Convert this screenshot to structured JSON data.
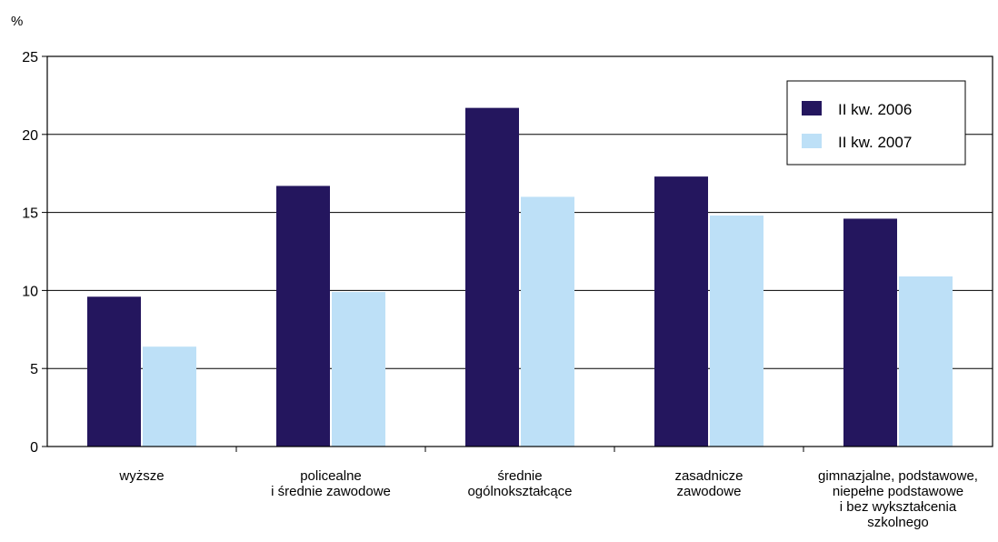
{
  "chart_data": {
    "type": "bar",
    "unit_label": "%",
    "categories": [
      [
        "wyższe"
      ],
      [
        "policealne",
        "i średnie zawodowe"
      ],
      [
        "średnie",
        "ogólnokształcące"
      ],
      [
        "zasadnicze",
        "zawodowe"
      ],
      [
        "gimnazjalne, podstawowe,",
        "niepełne podstawowe",
        "i bez wykształcenia",
        "szkolnego"
      ]
    ],
    "series": [
      {
        "name": "II kw. 2006",
        "color": "#24165e",
        "values": [
          9.6,
          16.7,
          21.7,
          17.3,
          14.6
        ]
      },
      {
        "name": "II kw. 2007",
        "color": "#bde0f7",
        "values": [
          6.4,
          9.9,
          16.0,
          14.8,
          10.9
        ]
      }
    ],
    "ylim": [
      0,
      25
    ],
    "yticks": [
      0,
      5,
      10,
      15,
      20,
      25
    ],
    "grid": true,
    "legend_position": "top-right"
  }
}
